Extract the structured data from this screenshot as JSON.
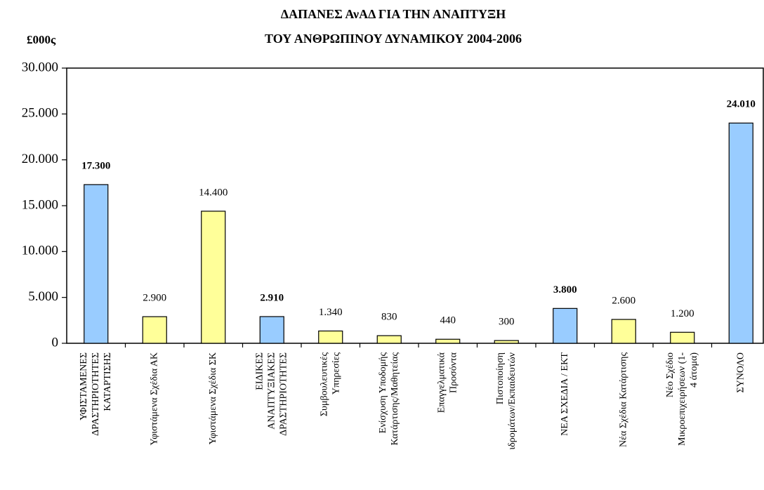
{
  "chart_data": {
    "type": "bar",
    "title": [
      "ΔΑΠΑΝΕΣ ΑνΑΔ ΓΙΑ ΤΗΝ ΑΝΑΠΤΥΞΗ",
      "ΤΟΥ ΑΝΘΡΩΠΙΝΟΥ ΔΥΝΑΜΙΚΟΥ 2004-2006"
    ],
    "y_label": "£000ς",
    "categories": [
      [
        "ΥΦΙΣΤΑΜΕΝΕΣ",
        "ΔΡΑΣΤΗΡΙΟΤΗΤΕΣ",
        "ΚΑΤΑΡΤΙΣΗΣ"
      ],
      [
        "Υφιστάμενα Σχέδια ΑΚ"
      ],
      [
        "Υφιστάμενα Σχέδια ΣΚ"
      ],
      [
        "ΕΙΔΙΚΕΣ",
        "ΑΝΑΠΤΥΞΙΑΚΕΣ",
        "ΔΡΑΣΤΗΡΙΟΤΗΤΕΣ"
      ],
      [
        "Συμβουλευτικές",
        "Υπηρεσίες"
      ],
      [
        "Ενίσχυση Υποδομής",
        "Κατάρτισης/Μαθητείας"
      ],
      [
        "Επαγγελματικά",
        "Προσόντα"
      ],
      [
        "Πιστοποίηση",
        "ιδρομάτων/Εκπαιδευτών"
      ],
      [
        "ΝΕΑ ΣΧΕΔΙΑ / ΕΚΤ"
      ],
      [
        "Νέα Σχέδια Κατάρτισης"
      ],
      [
        "Νέο Σχέδιο",
        "Μικροεπιχειρήσεων    (1-",
        "4 άτομα)"
      ],
      [
        "ΣΥΝΟΛΟ"
      ]
    ],
    "values": [
      17300,
      2900,
      14400,
      2910,
      1340,
      830,
      440,
      300,
      3800,
      2600,
      1200,
      24010
    ],
    "value_labels": [
      "17.300",
      "2.900",
      "14.400",
      "2.910",
      "1.340",
      "830",
      "440",
      "300",
      "3.800",
      "2.600",
      "1.200",
      "24.010"
    ],
    "colors": [
      "#99ccff",
      "#ffff99",
      "#ffff99",
      "#99ccff",
      "#ffff99",
      "#ffff99",
      "#ffff99",
      "#ffff99",
      "#99ccff",
      "#ffff99",
      "#ffff99",
      "#99ccff"
    ],
    "bold_labels": [
      true,
      false,
      false,
      true,
      false,
      false,
      false,
      false,
      true,
      false,
      false,
      true
    ],
    "ylim": [
      0,
      30000
    ],
    "yticks": [
      0,
      {
        "value": 5000,
        "label": "5.000"
      },
      {
        "value": 10000,
        "label": "10.000"
      },
      {
        "value": 15000,
        "label": "15.000"
      },
      {
        "value": 20000,
        "label": "20.000"
      },
      {
        "value": 25000,
        "label": "25.000"
      },
      {
        "value": 30000,
        "label": "30.000"
      }
    ]
  }
}
